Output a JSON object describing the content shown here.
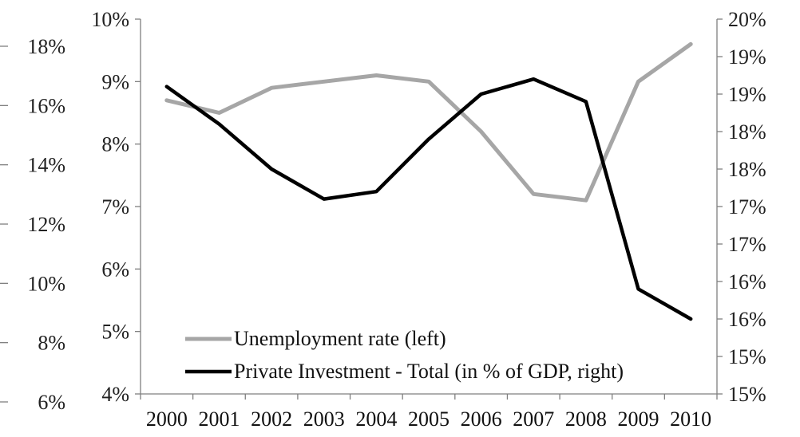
{
  "chart_data": {
    "type": "line",
    "title": "",
    "categories": [
      "2000",
      "2001",
      "2002",
      "2003",
      "2004",
      "2005",
      "2006",
      "2007",
      "2008",
      "2009",
      "2010"
    ],
    "left_axis": {
      "ticks": [
        "10%",
        "9%",
        "8%",
        "7%",
        "6%",
        "5%",
        "4%"
      ],
      "ylim": [
        4,
        10
      ]
    },
    "right_axis": {
      "ticks": [
        "20%",
        "19%",
        "19%",
        "18%",
        "18%",
        "17%",
        "17%",
        "16%",
        "16%",
        "15%",
        "15%"
      ],
      "ylim": [
        15,
        20
      ]
    },
    "outer_axis": {
      "ticks": [
        "18%",
        "16%",
        "14%",
        "12%",
        "10%",
        "8%",
        "6%"
      ]
    },
    "series": [
      {
        "name": "Unemployment rate (left)",
        "axis": "left",
        "color": "#a6a6a6",
        "values": [
          8.7,
          8.5,
          8.9,
          9.0,
          9.1,
          9.0,
          8.2,
          7.2,
          7.1,
          9.0,
          9.6
        ]
      },
      {
        "name": "Private Investment - Total (in % of GDP, right)",
        "axis": "right",
        "color": "#000000",
        "values": [
          19.1,
          18.6,
          18.0,
          17.6,
          17.7,
          18.4,
          19.0,
          19.2,
          18.9,
          16.4,
          16.0
        ]
      }
    ],
    "legend": "bottom-left inside plot",
    "grid": false
  }
}
